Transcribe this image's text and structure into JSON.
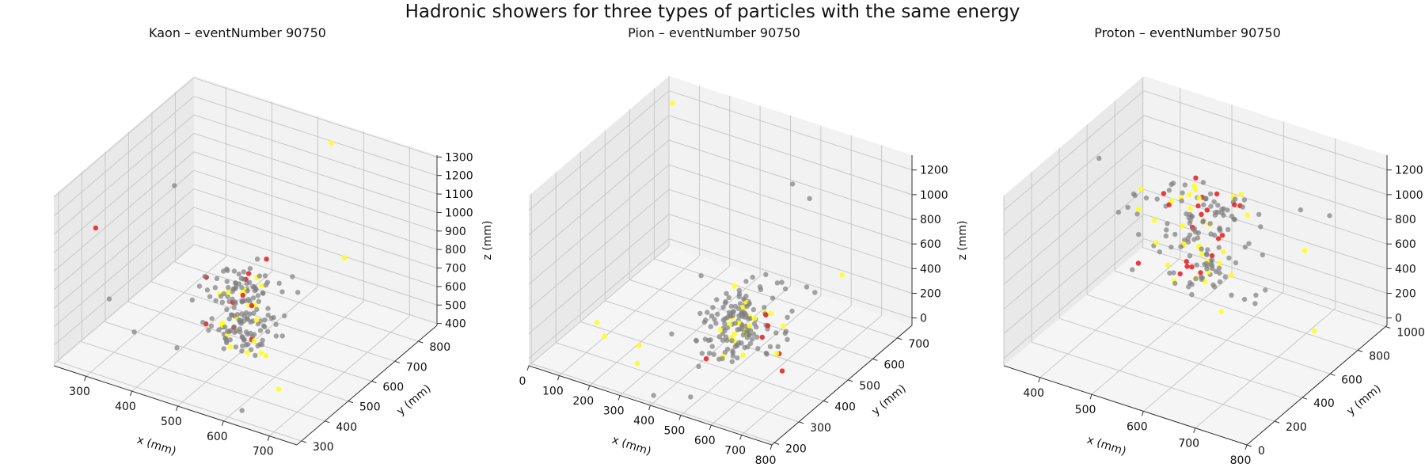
{
  "figure": {
    "title": "Hadronic showers for three types of particles with the same energy"
  },
  "colors": {
    "pane": "#f2f2f2",
    "pane_side": "#e9e9e9",
    "pane_floor": "#f5f5f5",
    "grid": "#c8c8c8",
    "hit_gray": "#7f7f7f",
    "hit_yellow": "#ffff1a",
    "hit_red": "#e8262a"
  },
  "chart_data": [
    {
      "type": "scatter3d",
      "title": "Kaon – eventNumber 90750",
      "xlabel": "x (mm)",
      "ylabel": "y (mm)",
      "zlabel": "z (mm)",
      "xlim": [
        230,
        760
      ],
      "ylim": [
        280,
        880
      ],
      "zlim": [
        390,
        1310
      ],
      "xticks": [
        300,
        400,
        500,
        600,
        700
      ],
      "yticks": [
        300,
        400,
        500,
        600,
        700,
        800
      ],
      "zticks": [
        400,
        500,
        600,
        700,
        800,
        900,
        1000,
        1100,
        1200,
        1300
      ],
      "grid": true,
      "core": {
        "x": 520,
        "y": 520,
        "z0": 460,
        "z1": 860,
        "r": 30
      },
      "outliers": [
        {
          "x": 250,
          "y": 420,
          "z": 1000,
          "c": "red"
        },
        {
          "x": 330,
          "y": 600,
          "z": 1100,
          "c": "gray"
        },
        {
          "x": 460,
          "y": 700,
          "z": 700,
          "c": "gray"
        },
        {
          "x": 300,
          "y": 380,
          "z": 700,
          "c": "gray"
        },
        {
          "x": 600,
          "y": 360,
          "z": 760,
          "c": "gray"
        },
        {
          "x": 700,
          "y": 320,
          "z": 600,
          "c": "yellow"
        },
        {
          "x": 620,
          "y": 320,
          "z": 420,
          "c": "gray"
        },
        {
          "x": 560,
          "y": 820,
          "z": 1280,
          "c": "yellow"
        },
        {
          "x": 380,
          "y": 330,
          "z": 640,
          "c": "gray"
        },
        {
          "x": 640,
          "y": 720,
          "z": 830,
          "c": "yellow"
        },
        {
          "x": 420,
          "y": 560,
          "z": 720,
          "c": "red"
        }
      ]
    },
    {
      "type": "scatter3d",
      "title": "Pion – eventNumber 90750",
      "xlabel": "x (mm)",
      "ylabel": "y (mm)",
      "zlabel": "z (mm)",
      "xlim": [
        0,
        800
      ],
      "ylim": [
        190,
        760
      ],
      "zlim": [
        -60,
        1320
      ],
      "xticks": [
        0,
        100,
        200,
        300,
        400,
        500,
        600,
        700,
        800
      ],
      "yticks": [
        200,
        300,
        400,
        500,
        600,
        700
      ],
      "zticks": [
        0,
        200,
        400,
        600,
        800,
        1000,
        1200
      ],
      "grid": true,
      "core": {
        "x": 480,
        "y": 450,
        "z0": 0,
        "z1": 420,
        "r": 45
      },
      "outliers": [
        {
          "x": 60,
          "y": 700,
          "z": 1250,
          "c": "yellow"
        },
        {
          "x": 520,
          "y": 620,
          "z": 1100,
          "c": "gray"
        },
        {
          "x": 560,
          "y": 640,
          "z": 980,
          "c": "gray"
        },
        {
          "x": 200,
          "y": 220,
          "z": 400,
          "c": "yellow"
        },
        {
          "x": 160,
          "y": 300,
          "z": 120,
          "c": "yellow"
        },
        {
          "x": 300,
          "y": 260,
          "z": 80,
          "c": "yellow"
        },
        {
          "x": 330,
          "y": 230,
          "z": 300,
          "c": "yellow"
        },
        {
          "x": 500,
          "y": 230,
          "z": 20,
          "c": "gray"
        },
        {
          "x": 680,
          "y": 380,
          "z": 120,
          "c": "red"
        },
        {
          "x": 700,
          "y": 600,
          "z": 540,
          "c": "yellow"
        },
        {
          "x": 300,
          "y": 520,
          "z": 350,
          "c": "gray"
        },
        {
          "x": 640,
          "y": 470,
          "z": 420,
          "c": "gray"
        }
      ]
    },
    {
      "type": "scatter3d",
      "title": "Proton – eventNumber 90750",
      "xlabel": "x (mm)",
      "ylabel": "y (mm)",
      "zlabel": "z (mm)",
      "xlim": [
        330,
        800
      ],
      "ylim": [
        0,
        1010
      ],
      "zlim": [
        -60,
        1320
      ],
      "xticks": [
        400,
        500,
        600,
        700,
        800
      ],
      "yticks": [
        0,
        200,
        400,
        600,
        800,
        1000
      ],
      "zticks": [
        0,
        200,
        400,
        600,
        800,
        1000,
        1200
      ],
      "grid": true,
      "core": {
        "x": 560,
        "y": 570,
        "z0": 300,
        "z1": 1150,
        "r": 40
      },
      "outliers": [
        {
          "x": 380,
          "y": 500,
          "z": 1210,
          "c": "gray"
        },
        {
          "x": 420,
          "y": 600,
          "z": 880,
          "c": "gray"
        },
        {
          "x": 440,
          "y": 560,
          "z": 820,
          "c": "yellow"
        },
        {
          "x": 700,
          "y": 760,
          "z": 980,
          "c": "gray"
        },
        {
          "x": 740,
          "y": 820,
          "z": 930,
          "c": "gray"
        },
        {
          "x": 740,
          "y": 640,
          "z": 820,
          "c": "yellow"
        },
        {
          "x": 780,
          "y": 560,
          "z": 300,
          "c": "yellow"
        },
        {
          "x": 620,
          "y": 380,
          "z": 800,
          "c": "gray"
        },
        {
          "x": 680,
          "y": 560,
          "z": 780,
          "c": "gray"
        }
      ]
    }
  ]
}
